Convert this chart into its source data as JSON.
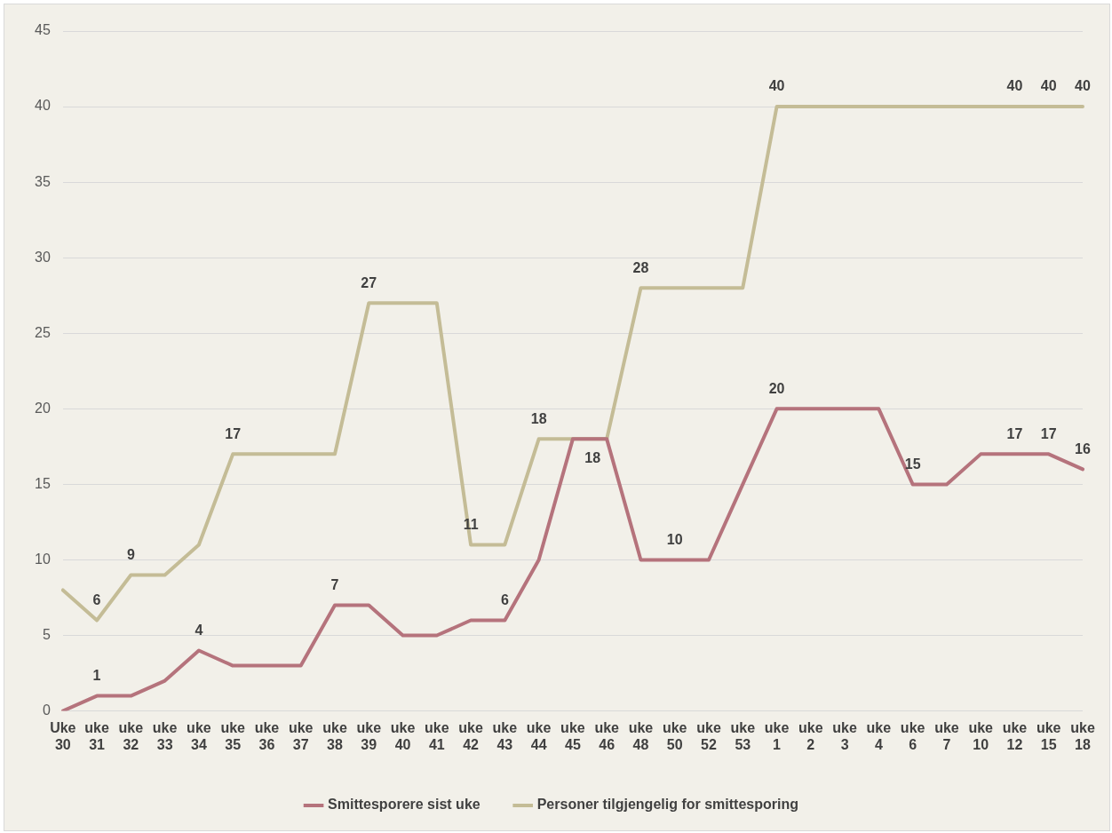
{
  "chart_data": {
    "type": "line",
    "categories": [
      "Uke 30",
      "uke 31",
      "uke 32",
      "uke 33",
      "uke 34",
      "uke 35",
      "uke 36",
      "uke 37",
      "uke 38",
      "uke 39",
      "uke 40",
      "uke 41",
      "uke 42",
      "uke 43",
      "uke 44",
      "uke 45",
      "uke 46",
      "uke 48",
      "uke 50",
      "uke 52",
      "uke 53",
      "uke 1",
      "uke 2",
      "uke 3",
      "uke 4",
      "uke 6",
      "uke 7",
      "uke 10",
      "uke 12",
      "uke 15",
      "uke 18"
    ],
    "series": [
      {
        "name": "Smittesporere sist uke",
        "color": "#b5737c",
        "values": [
          0,
          1,
          1,
          2,
          4,
          3,
          3,
          3,
          7,
          7,
          5,
          5,
          6,
          6,
          10,
          18,
          18,
          10,
          10,
          10,
          15,
          20,
          20,
          20,
          20,
          15,
          15,
          17,
          17,
          17,
          16
        ],
        "value_labels": [
          null,
          "1",
          null,
          null,
          "4",
          null,
          null,
          null,
          "7",
          null,
          null,
          null,
          null,
          "6",
          null,
          null,
          "18",
          null,
          "10",
          null,
          null,
          "20",
          null,
          null,
          null,
          "15",
          null,
          null,
          "17",
          "17",
          "16"
        ]
      },
      {
        "name": "Personer tilgjengelig for smittesporing",
        "color": "#c4bc96",
        "values": [
          8,
          6,
          9,
          9,
          11,
          17,
          17,
          17,
          17,
          27,
          27,
          27,
          11,
          11,
          18,
          18,
          18,
          28,
          28,
          28,
          28,
          40,
          40,
          40,
          40,
          40,
          40,
          40,
          40,
          40,
          40
        ],
        "value_labels": [
          null,
          "6",
          "9",
          null,
          null,
          "17",
          null,
          null,
          null,
          "27",
          null,
          null,
          "11",
          null,
          "18",
          null,
          null,
          "28",
          null,
          null,
          null,
          "40",
          null,
          null,
          null,
          null,
          null,
          null,
          "40",
          "40",
          "40"
        ]
      }
    ],
    "ylim": [
      0,
      45
    ],
    "yticks": [
      0,
      5,
      10,
      15,
      20,
      25,
      30,
      35,
      40,
      45
    ],
    "grid": "y",
    "legend": "bottom",
    "marker": "none",
    "line_style": "solid"
  }
}
